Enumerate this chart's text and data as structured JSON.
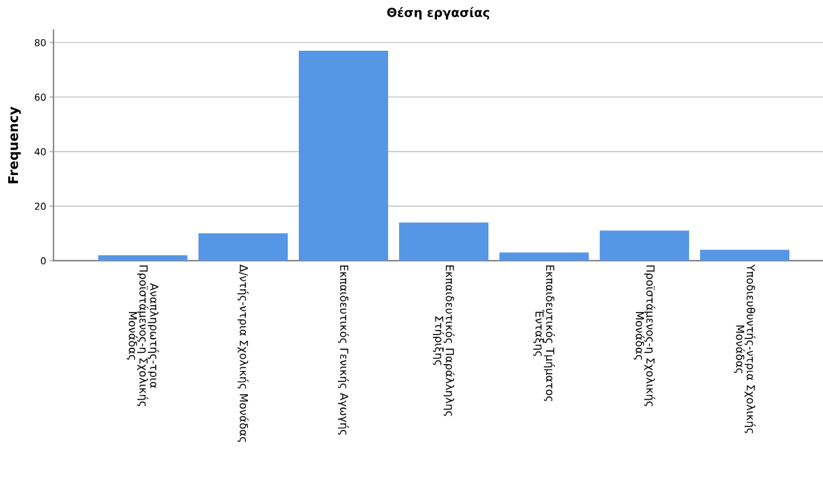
{
  "chart_data": {
    "type": "bar",
    "title": "Θέση εργασίας",
    "ylabel": "Frequency",
    "categories": [
      "Αναπληρωτής-τρια\nΠροϊστάμενος-η Σχολικής\nΜονάδας",
      "Δ/ντής-ντρια Σχολικής Μονάδας",
      "Εκπαιδευτικός Γενικής Αγωγής",
      "Εκπαιδευτικός Παράλληλης\nΣτήριξης",
      "Εκπαιδευτικός Τμήματος\nΈνταξης",
      "Προϊστάμενος-η Σχολικής\nΜονάδας",
      "Υποδιευθυντής-ντρια Σχολικής\nΜονάδας"
    ],
    "values": [
      2,
      10,
      77,
      14,
      3,
      11,
      4
    ],
    "color": "#5596e6",
    "ylim": [
      0,
      84.5
    ],
    "yticks": [
      0,
      20,
      40,
      60,
      80
    ],
    "grid": "y",
    "legend": false
  }
}
